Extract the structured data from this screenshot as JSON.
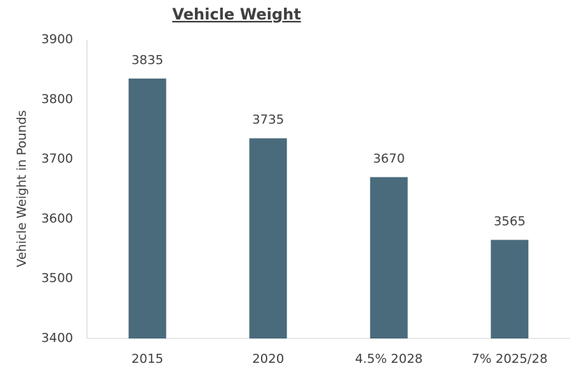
{
  "chart_data": {
    "type": "bar",
    "title": "Vehicle Weight",
    "y_label": "Vehicle Weight in Pounds",
    "categories": [
      "2015",
      "2020",
      "4.5% 2028",
      "7% 2025/28"
    ],
    "values": [
      3835,
      3735,
      3670,
      3565
    ],
    "color": "#4a6b7c",
    "ylim": [
      3400,
      3900
    ],
    "yticks": [
      3400,
      3500,
      3600,
      3700,
      3800,
      3900
    ],
    "grid": false
  }
}
